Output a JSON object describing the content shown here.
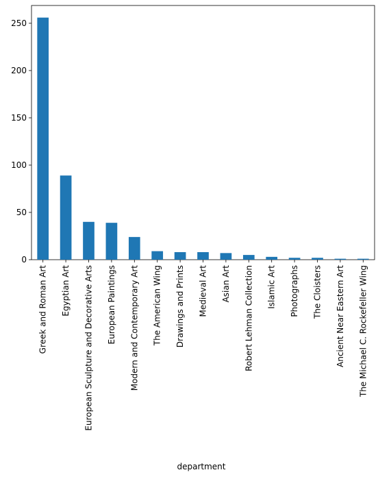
{
  "chart_data": {
    "type": "bar",
    "x_label": "department",
    "categories": [
      "Greek and Roman Art",
      "Egyptian Art",
      "European Sculpture and Decorative Arts",
      "European Paintings",
      "Modern and Contemporary Art",
      "The American Wing",
      "Drawings and Prints",
      "Medieval Art",
      "Asian Art",
      "Robert Lehman Collection",
      "Islamic Art",
      "Photographs",
      "The Cloisters",
      "Ancient Near Eastern Art",
      "The Michael C. Rockefeller Wing"
    ],
    "values": [
      256,
      89,
      40,
      39,
      24,
      9,
      8,
      8,
      7,
      5,
      3,
      2,
      2,
      1,
      1
    ],
    "color": "#1f77b4",
    "ylim": [
      0,
      268.8
    ],
    "yticks": [
      0,
      50,
      100,
      150,
      200,
      250
    ],
    "grid": false
  }
}
